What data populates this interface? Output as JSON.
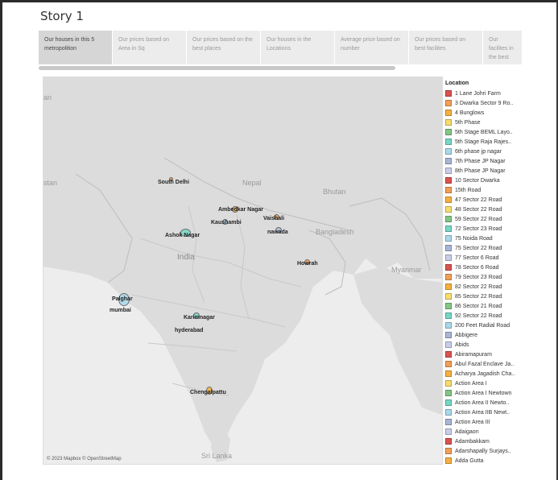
{
  "story": {
    "title": "Story 1"
  },
  "tabs": [
    {
      "label": "Our houses in this 5 metropolition",
      "active": true
    },
    {
      "label": "Our prices based on Area in Sq",
      "active": false
    },
    {
      "label": "Our prices based on the best places",
      "active": false
    },
    {
      "label": "Our houses in the Locations",
      "active": false
    },
    {
      "label": "Average price based on number",
      "active": false
    },
    {
      "label": "Our prices based on best facilites",
      "active": false
    },
    {
      "label": "Our facilites in the best p..",
      "active": false
    }
  ],
  "map": {
    "attribution": "© 2023 Mapbox © OpenStreetMap",
    "geo_labels": {
      "an": "an",
      "stan": "stan",
      "nepal": "Nepal",
      "bhutan": "Bhutan",
      "bangladesh": "Bangladesh",
      "india": "India",
      "myanmar": "Myanmar",
      "sri_lanka": "Sri Lanka"
    },
    "city_labels": {
      "south_delhi": "South Delhi",
      "ambedkar_nagar": "Ambedkar Nagar",
      "vaishali": "Vaishali",
      "kaushambi": "Kaushambi",
      "ashok_nagar": "Ashok Nagar",
      "nawada": "nawada",
      "howrah": "Howrah",
      "palghar": "Palghar",
      "mumbai": "mumbai",
      "karimnagar": "Karimnagar",
      "hyderabad": "hyderabad",
      "chengalpattu": "Chengalpattu"
    }
  },
  "legend": {
    "title": "Location",
    "items": [
      {
        "label": "1 Lane Johri Farm",
        "color": "#d9534f"
      },
      {
        "label": "3 Dwarka Sector 9 Ro..",
        "color": "#f0a05a"
      },
      {
        "label": "4 Bunglows",
        "color": "#f5b041"
      },
      {
        "label": "5th Phase",
        "color": "#f7dc6f"
      },
      {
        "label": "5th Stage BEML Layo..",
        "color": "#82c785"
      },
      {
        "label": "5th Stage Raja Rajes..",
        "color": "#76d7c4"
      },
      {
        "label": "6th phase jp nagar",
        "color": "#a9d8ea"
      },
      {
        "label": "7th Phase JP Nagar",
        "color": "#a8b5d6"
      },
      {
        "label": "8th Phase JP Nagar",
        "color": "#c8cde8"
      },
      {
        "label": "10 Sector Dwarka",
        "color": "#d9534f"
      },
      {
        "label": "15th Road",
        "color": "#f0a05a"
      },
      {
        "label": "47 Sector 22 Road",
        "color": "#f5b041"
      },
      {
        "label": "48 Sector 22 Road",
        "color": "#f7dc6f"
      },
      {
        "label": "59 Sector 22 Road",
        "color": "#82c785"
      },
      {
        "label": "72 Sector 23 Road",
        "color": "#76d7c4"
      },
      {
        "label": "75 Noida Road",
        "color": "#a9d8ea"
      },
      {
        "label": "75 Sector 22 Road",
        "color": "#a8b5d6"
      },
      {
        "label": "77 Sector 6 Road",
        "color": "#c8cde8"
      },
      {
        "label": "78 Sector 6 Road",
        "color": "#d9534f"
      },
      {
        "label": "79 Sector 23 Road",
        "color": "#f0a05a"
      },
      {
        "label": "82 Sector 22 Road",
        "color": "#f5b041"
      },
      {
        "label": "85 Sector 22 Road",
        "color": "#f7dc6f"
      },
      {
        "label": "86 Sector 21 Road",
        "color": "#82c785"
      },
      {
        "label": "92 Sector 22 Road",
        "color": "#76d7c4"
      },
      {
        "label": "200 Feet Radial Road",
        "color": "#a9d8ea"
      },
      {
        "label": "Abbigere",
        "color": "#a8b5d6"
      },
      {
        "label": "Abids",
        "color": "#c8cde8"
      },
      {
        "label": "Abiramapuram",
        "color": "#d9534f"
      },
      {
        "label": "Abul Fazal Enclave Ja..",
        "color": "#f0a05a"
      },
      {
        "label": "Acharya Jagadish Cha..",
        "color": "#f5b041"
      },
      {
        "label": "Action Area I",
        "color": "#f7dc6f"
      },
      {
        "label": "Action Area I Newtown",
        "color": "#82c785"
      },
      {
        "label": "Action Area II Newto..",
        "color": "#76d7c4"
      },
      {
        "label": "Action Area IIB Newt..",
        "color": "#a9d8ea"
      },
      {
        "label": "Action Area III",
        "color": "#a8b5d6"
      },
      {
        "label": "Adaigaon",
        "color": "#c8cde8"
      },
      {
        "label": "Adambakkam",
        "color": "#d9534f"
      },
      {
        "label": "Adarshapally Surjays..",
        "color": "#f0a05a"
      },
      {
        "label": "Adda Gutta",
        "color": "#f5b041"
      }
    ]
  }
}
